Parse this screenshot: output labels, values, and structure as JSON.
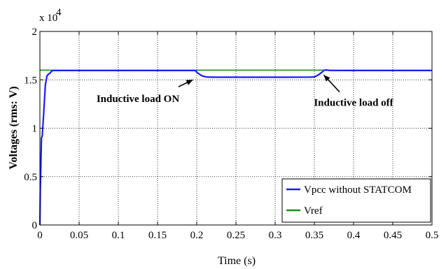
{
  "chart_data": {
    "type": "line",
    "xlabel": "Time (s)",
    "ylabel": "Voltages (rms: V)",
    "y_multiplier_label": "x 10",
    "y_multiplier_exponent": "4",
    "xlim": [
      0,
      0.5
    ],
    "ylim": [
      0,
      20000
    ],
    "x_ticks": [
      "0",
      "0.05",
      "0.1",
      "0.15",
      "0.2",
      "0.25",
      "0.3",
      "0.35",
      "0.4",
      "0.45",
      "0.5"
    ],
    "y_ticks": [
      "0",
      "0.5",
      "1",
      "1.5",
      "2"
    ],
    "grid": true,
    "legend_position": "bottom-right",
    "series": [
      {
        "name": "Vpcc without STATCOM",
        "color": "#1a1aff",
        "x": [
          0,
          0.0005,
          0.002,
          0.003,
          0.005,
          0.007,
          0.009,
          0.011,
          0.013,
          0.015,
          0.017,
          0.02,
          0.03,
          0.1,
          0.198,
          0.2,
          0.203,
          0.207,
          0.212,
          0.22,
          0.25,
          0.3,
          0.345,
          0.35,
          0.355,
          0.36,
          0.362,
          0.365,
          0.37,
          0.4,
          0.5
        ],
        "y": [
          0,
          3500,
          9000,
          9200,
          11800,
          14500,
          15400,
          15600,
          15700,
          15900,
          15960,
          15960,
          15960,
          15960,
          15960,
          15800,
          15600,
          15400,
          15300,
          15270,
          15270,
          15270,
          15280,
          15300,
          15500,
          15800,
          15980,
          16020,
          15970,
          15960,
          15960
        ]
      },
      {
        "name": "Vref",
        "color": "#1a8f1a",
        "x": [
          0,
          0.5
        ],
        "y": [
          16000,
          16000
        ]
      }
    ],
    "annotations": [
      {
        "text": "Inductive load ON",
        "x": 0.125,
        "y": 12700,
        "arrow_to": [
          0.195,
          15000
        ]
      },
      {
        "text": "Inductive load off",
        "x": 0.4,
        "y": 12300,
        "arrow_to": [
          0.362,
          15500
        ]
      }
    ]
  }
}
